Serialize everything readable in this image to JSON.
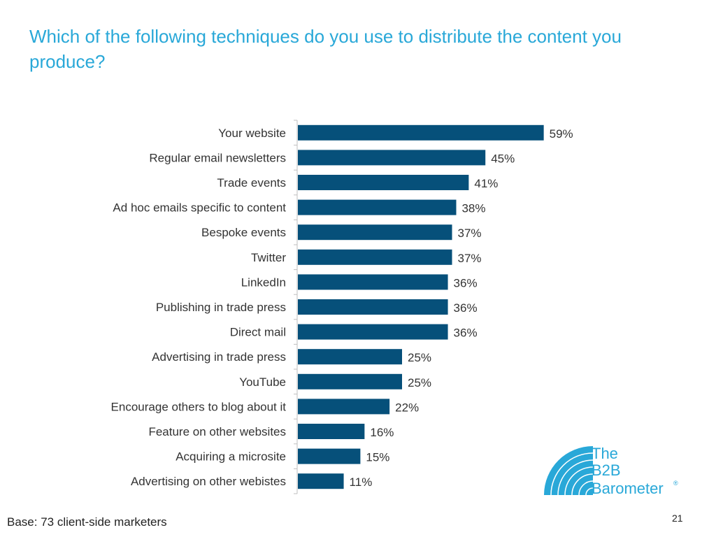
{
  "slide": {
    "title": "Which of the following techniques do you use to distribute the content you produce?",
    "base_note": "Base: 73 client-side marketers",
    "page_number": "21"
  },
  "logo": {
    "line1": "The",
    "line2": "B2B",
    "line3": "Barometer",
    "mark": "®",
    "color": "#29a8d8"
  },
  "colors": {
    "bar": "#06507a",
    "text": "#333333",
    "axis": "#bfbfbf"
  },
  "chart_data": {
    "type": "bar",
    "orientation": "horizontal",
    "categories": [
      "Your website",
      "Regular email newsletters",
      "Trade events",
      "Ad hoc emails specific to content",
      "Bespoke events",
      "Twitter",
      "LinkedIn",
      "Publishing in trade press",
      "Direct mail",
      "Advertising in trade press",
      "YouTube",
      "Encourage others to blog about it",
      "Feature on other websites",
      "Acquiring a microsite",
      "Advertising on other webistes"
    ],
    "values": [
      59,
      45,
      41,
      38,
      37,
      37,
      36,
      36,
      36,
      25,
      25,
      22,
      16,
      15,
      11
    ],
    "value_labels": [
      "59%",
      "45%",
      "41%",
      "38%",
      "37%",
      "37%",
      "36%",
      "36%",
      "36%",
      "25%",
      "25%",
      "22%",
      "16%",
      "15%",
      "11%"
    ],
    "xlim": [
      0,
      100
    ],
    "grid": false,
    "legend": "none"
  }
}
